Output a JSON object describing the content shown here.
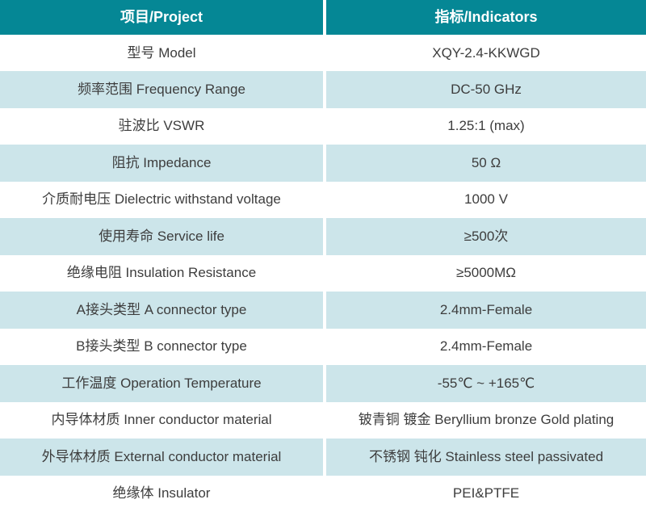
{
  "colors": {
    "header_bg": "#058795",
    "header_text": "#ffffff",
    "row_bg": "#ffffff",
    "row_alt_bg": "#cce5ea",
    "body_text": "#3d3d3d"
  },
  "table": {
    "columns": [
      {
        "label": "项目/Project"
      },
      {
        "label": "指标/Indicators"
      }
    ],
    "rows": [
      {
        "project": "型号 Model",
        "indicator": "XQY-2.4-KKWGD"
      },
      {
        "project": "频率范围 Frequency Range",
        "indicator": "DC-50 GHz"
      },
      {
        "project": "驻波比 VSWR",
        "indicator": "1.25:1 (max)"
      },
      {
        "project": "阻抗 Impedance",
        "indicator": "50 Ω"
      },
      {
        "project": "介质耐电压 Dielectric withstand voltage",
        "indicator": "1000 V"
      },
      {
        "project": "使用寿命 Service life",
        "indicator": "≥500次"
      },
      {
        "project": "绝缘电阻 Insulation Resistance",
        "indicator": "≥5000MΩ"
      },
      {
        "project": "A接头类型 A connector type",
        "indicator": "2.4mm-Female"
      },
      {
        "project": "B接头类型 B connector type",
        "indicator": "2.4mm-Female"
      },
      {
        "project": "工作温度 Operation Temperature",
        "indicator": "-55℃ ~ +165℃"
      },
      {
        "project": "内导体材质 Inner conductor material",
        "indicator": "铍青铜 镀金 Beryllium bronze Gold plating"
      },
      {
        "project": "外导体材质 External conductor material",
        "indicator": "不锈钢 钝化 Stainless steel passivated"
      },
      {
        "project": "绝缘体 Insulator",
        "indicator": "PEI&PTFE"
      }
    ]
  }
}
